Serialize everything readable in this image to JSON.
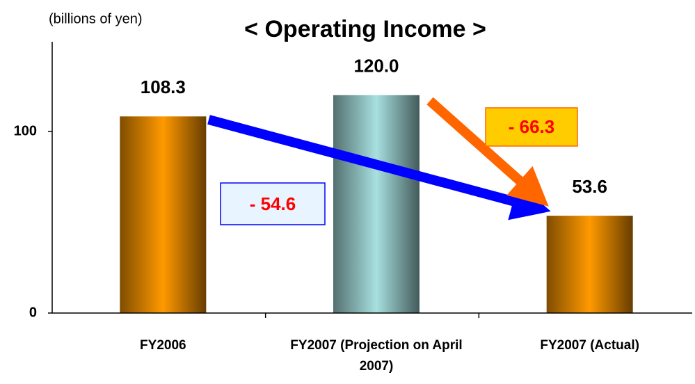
{
  "chart_data": {
    "type": "bar",
    "title": "< Operating Income >",
    "unit_label": "(billions of yen)",
    "categories": [
      "FY2006",
      "FY2007 (Projection on April 2007)",
      "FY2007 (Actual)"
    ],
    "values": [
      108.3,
      120.0,
      53.6
    ],
    "value_labels": [
      "108.3",
      "120.0",
      "53.6"
    ],
    "colors": [
      "#ff9900",
      "#a8e0e0",
      "#ff9900"
    ],
    "ylim": [
      0,
      150
    ],
    "yticks": [
      0,
      100
    ],
    "grid": false,
    "annotations": [
      "- 54.6",
      "- 66.3"
    ]
  }
}
